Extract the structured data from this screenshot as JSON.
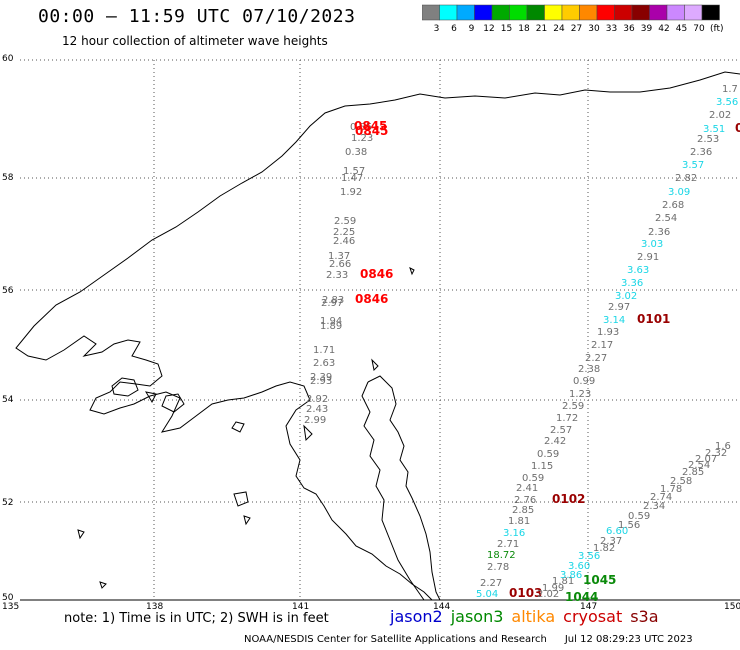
{
  "title": "00:00 – 11:59 UTC 07/10/2023",
  "subtitle": "12 hour collection of altimeter wave heights",
  "colorbar": {
    "labels": [
      "3",
      "6",
      "9",
      "12",
      "15",
      "18",
      "21",
      "24",
      "27",
      "30",
      "33",
      "36",
      "39",
      "42",
      "45",
      "70"
    ],
    "unit": "(ft)",
    "colors": [
      "#808080",
      "#00ffff",
      "#00aaff",
      "#0000ff",
      "#00aa00",
      "#00dd00",
      "#008800",
      "#ffff00",
      "#ffcc00",
      "#ff8800",
      "#ff0000",
      "#cc0000",
      "#880000",
      "#aa00aa",
      "#cc88ff",
      "#ddaaff",
      "#000000"
    ]
  },
  "axes": {
    "lat_labels": [
      "60",
      "58",
      "56",
      "54",
      "52",
      "50"
    ],
    "lon_labels": [
      "135",
      "138",
      "141",
      "144",
      "147",
      "150"
    ]
  },
  "colors": {
    "gray": "#6e6e6e",
    "cyan": "#1ad6e6",
    "green": "#0a8a0a",
    "red": "#ff0000",
    "darkred": "#990000"
  },
  "observations": [
    {
      "text": "0.85",
      "color": "gray"
    },
    {
      "text": "1.23",
      "color": "gray"
    },
    {
      "text": "0.38",
      "color": "gray"
    },
    {
      "text": "1.57",
      "color": "gray"
    },
    {
      "text": "1.47",
      "color": "gray"
    },
    {
      "text": "1.92",
      "color": "gray"
    },
    {
      "text": "2.59",
      "color": "gray"
    },
    {
      "text": "2.25",
      "color": "gray"
    },
    {
      "text": "2.46",
      "color": "gray"
    },
    {
      "text": "1.37",
      "color": "gray"
    },
    {
      "text": "2.66",
      "color": "gray"
    },
    {
      "text": "2.33",
      "color": "gray"
    },
    {
      "text": "2.83",
      "color": "gray"
    },
    {
      "text": "2.97",
      "color": "gray"
    },
    {
      "text": "1.94",
      "color": "gray"
    },
    {
      "text": "1.89",
      "color": "gray"
    },
    {
      "text": "1.71",
      "color": "gray"
    },
    {
      "text": "2.63",
      "color": "gray"
    },
    {
      "text": "2.39",
      "color": "gray"
    },
    {
      "text": "2.93",
      "color": "gray"
    },
    {
      "text": "2.92",
      "color": "gray"
    },
    {
      "text": "2.43",
      "color": "gray"
    },
    {
      "text": "2.99",
      "color": "gray"
    },
    {
      "text": "0845",
      "color": "red"
    },
    {
      "text": "0845",
      "color": "red"
    },
    {
      "text": "0846",
      "color": "red"
    },
    {
      "text": "0846",
      "color": "red"
    },
    {
      "text": "1.7",
      "color": "gray"
    },
    {
      "text": "3.56",
      "color": "cyan"
    },
    {
      "text": "2.02",
      "color": "gray"
    },
    {
      "text": "2.53",
      "color": "gray"
    },
    {
      "text": "3.51",
      "color": "cyan"
    },
    {
      "text": "0",
      "color": "darkred"
    },
    {
      "text": "2.36",
      "color": "gray"
    },
    {
      "text": "3.57",
      "color": "cyan"
    },
    {
      "text": "2.82",
      "color": "gray"
    },
    {
      "text": "3.09",
      "color": "cyan"
    },
    {
      "text": "2.68",
      "color": "gray"
    },
    {
      "text": "2.54",
      "color": "gray"
    },
    {
      "text": "2.36",
      "color": "gray"
    },
    {
      "text": "3.03",
      "color": "cyan"
    },
    {
      "text": "2.91",
      "color": "gray"
    },
    {
      "text": "3.63",
      "color": "cyan"
    },
    {
      "text": "3.36",
      "color": "cyan"
    },
    {
      "text": "3.02",
      "color": "cyan"
    },
    {
      "text": "2.97",
      "color": "gray"
    },
    {
      "text": "3.14",
      "color": "cyan"
    },
    {
      "text": "0101",
      "color": "darkred"
    },
    {
      "text": "1.93",
      "color": "gray"
    },
    {
      "text": "2.17",
      "color": "gray"
    },
    {
      "text": "2.27",
      "color": "gray"
    },
    {
      "text": "2.38",
      "color": "gray"
    },
    {
      "text": "0.99",
      "color": "gray"
    },
    {
      "text": "1.23",
      "color": "gray"
    },
    {
      "text": "2.59",
      "color": "gray"
    },
    {
      "text": "1.72",
      "color": "gray"
    },
    {
      "text": "2.57",
      "color": "gray"
    },
    {
      "text": "2.42",
      "color": "gray"
    },
    {
      "text": "0.59",
      "color": "gray"
    },
    {
      "text": "1.15",
      "color": "gray"
    },
    {
      "text": "0.59",
      "color": "gray"
    },
    {
      "text": "2.41",
      "color": "gray"
    },
    {
      "text": "2.76",
      "color": "gray"
    },
    {
      "text": "0102",
      "color": "darkred"
    },
    {
      "text": "2.85",
      "color": "gray"
    },
    {
      "text": "1.81",
      "color": "gray"
    },
    {
      "text": "3.16",
      "color": "cyan"
    },
    {
      "text": "2.71",
      "color": "gray"
    },
    {
      "text": "18.72",
      "color": "green"
    },
    {
      "text": "2.78",
      "color": "gray"
    },
    {
      "text": "2.27",
      "color": "gray"
    },
    {
      "text": "5.04",
      "color": "cyan"
    },
    {
      "text": "0103",
      "color": "darkred"
    },
    {
      "text": "1.81",
      "color": "gray"
    },
    {
      "text": "1.99",
      "color": "gray"
    },
    {
      "text": "2.02",
      "color": "gray"
    },
    {
      "text": "1044",
      "color": "green"
    },
    {
      "text": "1045",
      "color": "green"
    },
    {
      "text": "3.86",
      "color": "cyan"
    },
    {
      "text": "3.60",
      "color": "cyan"
    },
    {
      "text": "3.56",
      "color": "cyan"
    },
    {
      "text": "1.82",
      "color": "gray"
    },
    {
      "text": "2.37",
      "color": "gray"
    },
    {
      "text": "6.60",
      "color": "cyan"
    },
    {
      "text": "1.56",
      "color": "gray"
    },
    {
      "text": "0.59",
      "color": "gray"
    },
    {
      "text": "2.34",
      "color": "gray"
    },
    {
      "text": "2.74",
      "color": "gray"
    },
    {
      "text": "1.78",
      "color": "gray"
    },
    {
      "text": "2.58",
      "color": "gray"
    },
    {
      "text": "2.85",
      "color": "gray"
    },
    {
      "text": "2.54",
      "color": "gray"
    },
    {
      "text": "2.07",
      "color": "gray"
    },
    {
      "text": "2.32",
      "color": "gray"
    },
    {
      "text": "1.6",
      "color": "gray"
    }
  ],
  "note": "note:  1) Time is in UTC;  2) SWH is in feet",
  "legend": [
    {
      "label": "jason2",
      "color": "#0000cc"
    },
    {
      "label": "jason3",
      "color": "#008800"
    },
    {
      "label": "altika",
      "color": "#ff8800"
    },
    {
      "label": "cryosat",
      "color": "#cc0000"
    },
    {
      "label": "s3a",
      "color": "#880000"
    }
  ],
  "footer": "NOAA/NESDIS Center for Satellite Applications and Research",
  "timestamp": "Jul 12 08:29:23 UTC 2023"
}
